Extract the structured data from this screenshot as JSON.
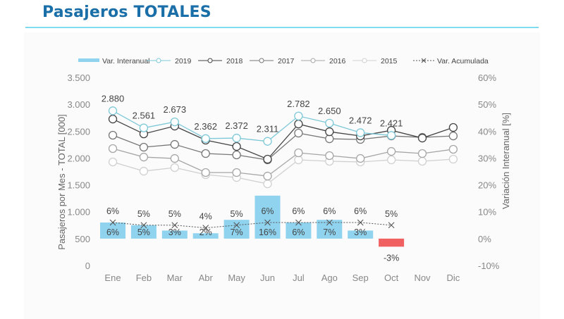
{
  "header": {
    "title": "Pasajeros TOTALES"
  },
  "chart_data": {
    "type": "line",
    "title": "Pasajeros TOTALES",
    "categories": [
      "Ene",
      "Feb",
      "Mar",
      "Abr",
      "May",
      "Jun",
      "Jul",
      "Ago",
      "Sep",
      "Oct",
      "Nov",
      "Dic"
    ],
    "ylabel": "Pasajeros por Mes - TOTAL [000]",
    "y2label": "Variación Interanual [%]",
    "ylim": [
      0,
      3500
    ],
    "y2lim": [
      -10,
      60
    ],
    "yticks": [
      "0",
      "500",
      "1.000",
      "1.500",
      "2.000",
      "2.500",
      "3.000",
      "3.500"
    ],
    "yticks_values": [
      0,
      500,
      1000,
      1500,
      2000,
      2500,
      3000,
      3500
    ],
    "y2ticks": [
      "-10%",
      "0%",
      "10%",
      "20%",
      "30%",
      "40%",
      "50%",
      "60%"
    ],
    "y2ticks_values": [
      -10,
      0,
      10,
      20,
      30,
      40,
      50,
      60
    ],
    "legend_position": "top",
    "legend": [
      "Var. Interanual",
      "2019",
      "2018",
      "2017",
      "2016",
      "2015",
      "Var. Acumulada"
    ],
    "series": [
      {
        "name": "2019",
        "color": "#7ec8d8",
        "axis": "left",
        "values": [
          2880,
          2561,
          2673,
          2362,
          2372,
          2311,
          2782,
          2650,
          2472,
          2421,
          null,
          null
        ],
        "labels": [
          "2.880",
          "2.561",
          "2.673",
          "2.362",
          "2.372",
          "2.311",
          "2.782",
          "2.650",
          "2.472",
          "2.421",
          "",
          ""
        ]
      },
      {
        "name": "2018",
        "color": "#444444",
        "axis": "left",
        "values": [
          2726,
          2450,
          2595,
          2333,
          2215,
          1979,
          2634,
          2490,
          2411,
          2516,
          2372,
          2569
        ]
      },
      {
        "name": "2017",
        "color": "#777777",
        "axis": "left",
        "values": [
          2425,
          2202,
          2254,
          2084,
          2058,
          1966,
          2464,
          2359,
          2346,
          2411,
          2385,
          2411
        ]
      },
      {
        "name": "2016",
        "color": "#a6a6a6",
        "axis": "left",
        "values": [
          2176,
          2018,
          1992,
          1730,
          1730,
          1664,
          2097,
          2045,
          1992,
          2123,
          2084,
          2163
        ]
      },
      {
        "name": "2015",
        "color": "#d0d0d0",
        "axis": "left",
        "values": [
          1927,
          1756,
          1822,
          1691,
          1638,
          1520,
          1966,
          1940,
          1927,
          1966,
          1940,
          1979
        ]
      }
    ],
    "bars": {
      "name": "Var. Interanual",
      "axis": "right",
      "color": "#8fd3ef",
      "negative_color": "#f06060",
      "values": [
        6,
        5,
        3,
        2,
        7,
        16,
        6,
        7,
        3,
        -3,
        null,
        null
      ],
      "labels": [
        "6%",
        "5%",
        "3%",
        "2%",
        "7%",
        "16%",
        "6%",
        "7%",
        "3%",
        "-3%",
        "",
        ""
      ]
    },
    "cumulative": {
      "name": "Var. Acumulada",
      "axis": "right",
      "color": "#555555",
      "values": [
        6,
        5,
        5,
        4,
        5,
        6,
        6,
        6,
        6,
        5,
        null,
        null
      ],
      "labels": [
        "6%",
        "5%",
        "5%",
        "4%",
        "5%",
        "6%",
        "6%",
        "6%",
        "6%",
        "5%",
        "",
        ""
      ]
    }
  }
}
